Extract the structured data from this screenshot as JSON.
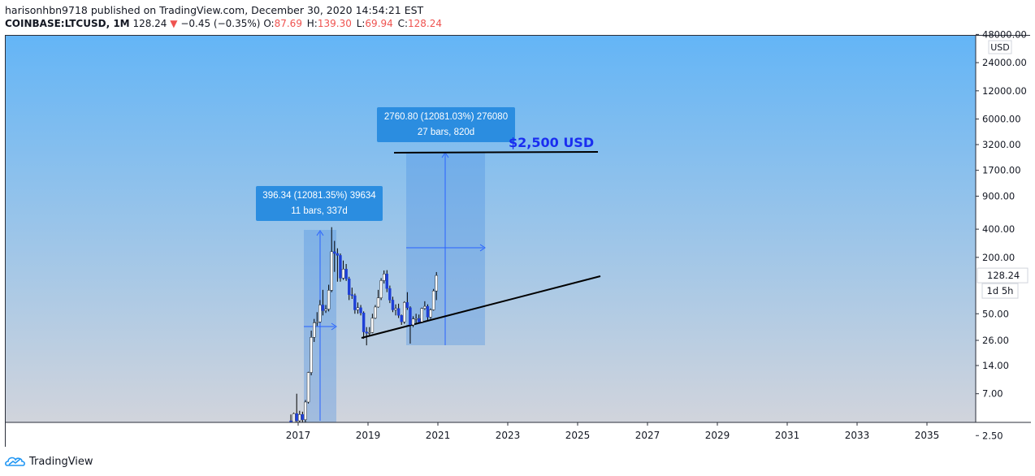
{
  "header": {
    "publisher_line": "harisonhbn9718 published on TradingView.com, December 30, 2020 14:54:21 EST",
    "symbol": "COINBASE:LTCUSD, 1M",
    "last_price": "128.24",
    "change_arrow": "▼",
    "change": "−0.45 (−0.35%)",
    "open_label": "O:",
    "open": "87.69",
    "high_label": "H:",
    "high": "139.30",
    "low_label": "L:",
    "low": "69.94",
    "close_label": "C:",
    "close": "128.24"
  },
  "footer": {
    "brand": "TradingView"
  },
  "colors": {
    "bg_top": "#64b5f6",
    "bg_bottom": "#d1d4dc",
    "bull": "#ffffff",
    "bear": "#1e3fd6",
    "measure_fill": "#4a90e2",
    "measure_label": "#2b8de0",
    "target_text": "#1a2ef0"
  },
  "chart_data": {
    "type": "candlestick",
    "scale": "log",
    "currency_label": "USD",
    "y_ticks": [
      "48000.00",
      "24000.00",
      "12000.00",
      "6000.00",
      "3200.00",
      "1700.00",
      "900.00",
      "400.00",
      "200.00",
      "50.00",
      "26.00",
      "14.00",
      "7.00",
      "2.50"
    ],
    "x_ticks": [
      "2017",
      "2019",
      "2021",
      "2023",
      "2025",
      "2027",
      "2029",
      "2031",
      "2033",
      "2035"
    ],
    "last_price_label": "128.24",
    "countdown_label": "1d 5h",
    "target_annotation": "$2,500 USD",
    "measure_1": {
      "line1": "396.34 (12081.35%) 39634",
      "line2": "11 bars, 337d"
    },
    "measure_2": {
      "line1": "2760.80 (12081.03%) 276080",
      "line2": "27 bars, 820d"
    },
    "candles": [
      {
        "t": "2016-10",
        "o": 3.6,
        "h": 4.2,
        "l": 3.0,
        "c": 3.2
      },
      {
        "t": "2016-11",
        "o": 3.2,
        "h": 4.4,
        "l": 3.0,
        "c": 4.3
      },
      {
        "t": "2016-12",
        "o": 4.3,
        "h": 7.0,
        "l": 3.5,
        "c": 3.6
      },
      {
        "t": "2017-01",
        "o": 3.6,
        "h": 4.6,
        "l": 3.2,
        "c": 4.2
      },
      {
        "t": "2017-02",
        "o": 4.2,
        "h": 4.5,
        "l": 3.3,
        "c": 3.7
      },
      {
        "t": "2017-03",
        "o": 3.7,
        "h": 6.0,
        "l": 3.4,
        "c": 5.7
      },
      {
        "t": "2017-04",
        "o": 5.7,
        "h": 12.0,
        "l": 5.5,
        "c": 11.8
      },
      {
        "t": "2017-05",
        "o": 11.8,
        "h": 33.0,
        "l": 11.0,
        "c": 28.0
      },
      {
        "t": "2017-06",
        "o": 28.0,
        "h": 44.0,
        "l": 25.0,
        "c": 40.0
      },
      {
        "t": "2017-07",
        "o": 40.0,
        "h": 52.0,
        "l": 37.0,
        "c": 41.0
      },
      {
        "t": "2017-08",
        "o": 41.0,
        "h": 70.0,
        "l": 40.0,
        "c": 62.0
      },
      {
        "t": "2017-09",
        "o": 62.0,
        "h": 90.0,
        "l": 48.0,
        "c": 54.0
      },
      {
        "t": "2017-10",
        "o": 54.0,
        "h": 62.0,
        "l": 51.0,
        "c": 56.0
      },
      {
        "t": "2017-11",
        "o": 56.0,
        "h": 102.0,
        "l": 53.0,
        "c": 89.0
      },
      {
        "t": "2017-12",
        "o": 89.0,
        "h": 420.0,
        "l": 85.0,
        "c": 230.0
      },
      {
        "t": "2018-01",
        "o": 230.0,
        "h": 300.0,
        "l": 140.0,
        "c": 220.0
      },
      {
        "t": "2018-02",
        "o": 220.0,
        "h": 250.0,
        "l": 110.0,
        "c": 210.0
      },
      {
        "t": "2018-03",
        "o": 210.0,
        "h": 220.0,
        "l": 110.0,
        "c": 120.0
      },
      {
        "t": "2018-04",
        "o": 120.0,
        "h": 185.0,
        "l": 115.0,
        "c": 150.0
      },
      {
        "t": "2018-05",
        "o": 150.0,
        "h": 170.0,
        "l": 112.0,
        "c": 118.0
      },
      {
        "t": "2018-06",
        "o": 118.0,
        "h": 124.0,
        "l": 70.0,
        "c": 80.0
      },
      {
        "t": "2018-07",
        "o": 80.0,
        "h": 95.0,
        "l": 72.0,
        "c": 78.0
      },
      {
        "t": "2018-08",
        "o": 78.0,
        "h": 82.0,
        "l": 50.0,
        "c": 55.0
      },
      {
        "t": "2018-09",
        "o": 55.0,
        "h": 66.0,
        "l": 50.0,
        "c": 58.0
      },
      {
        "t": "2018-10",
        "o": 58.0,
        "h": 62.0,
        "l": 48.0,
        "c": 51.0
      },
      {
        "t": "2018-11",
        "o": 51.0,
        "h": 53.0,
        "l": 27.0,
        "c": 32.0
      },
      {
        "t": "2018-12",
        "o": 32.0,
        "h": 36.0,
        "l": 23.0,
        "c": 31.0
      },
      {
        "t": "2019-01",
        "o": 31.0,
        "h": 36.0,
        "l": 29.0,
        "c": 31.5
      },
      {
        "t": "2019-02",
        "o": 31.5,
        "h": 50.0,
        "l": 31.0,
        "c": 45.0
      },
      {
        "t": "2019-03",
        "o": 45.0,
        "h": 62.0,
        "l": 44.0,
        "c": 59.0
      },
      {
        "t": "2019-04",
        "o": 59.0,
        "h": 90.0,
        "l": 58.0,
        "c": 74.0
      },
      {
        "t": "2019-05",
        "o": 74.0,
        "h": 120.0,
        "l": 70.0,
        "c": 113.0
      },
      {
        "t": "2019-06",
        "o": 113.0,
        "h": 145.0,
        "l": 105.0,
        "c": 133.0
      },
      {
        "t": "2019-07",
        "o": 133.0,
        "h": 146.0,
        "l": 85.0,
        "c": 93.0
      },
      {
        "t": "2019-08",
        "o": 93.0,
        "h": 100.0,
        "l": 65.0,
        "c": 70.0
      },
      {
        "t": "2019-09",
        "o": 70.0,
        "h": 76.0,
        "l": 52.0,
        "c": 55.0
      },
      {
        "t": "2019-10",
        "o": 55.0,
        "h": 63.0,
        "l": 48.0,
        "c": 57.0
      },
      {
        "t": "2019-11",
        "o": 57.0,
        "h": 64.0,
        "l": 45.0,
        "c": 48.0
      },
      {
        "t": "2019-12",
        "o": 48.0,
        "h": 49.0,
        "l": 38.0,
        "c": 41.0
      },
      {
        "t": "2020-01",
        "o": 41.0,
        "h": 68.0,
        "l": 39.0,
        "c": 66.0
      },
      {
        "t": "2020-02",
        "o": 66.0,
        "h": 85.0,
        "l": 55.0,
        "c": 58.0
      },
      {
        "t": "2020-03",
        "o": 58.0,
        "h": 60.0,
        "l": 24.0,
        "c": 38.0
      },
      {
        "t": "2020-04",
        "o": 38.0,
        "h": 47.0,
        "l": 36.0,
        "c": 44.0
      },
      {
        "t": "2020-05",
        "o": 44.0,
        "h": 50.0,
        "l": 40.0,
        "c": 44.5
      },
      {
        "t": "2020-06",
        "o": 44.5,
        "h": 49.0,
        "l": 40.0,
        "c": 41.0
      },
      {
        "t": "2020-07",
        "o": 41.0,
        "h": 58.0,
        "l": 40.0,
        "c": 57.0
      },
      {
        "t": "2020-08",
        "o": 57.0,
        "h": 68.0,
        "l": 55.0,
        "c": 60.0
      },
      {
        "t": "2020-09",
        "o": 60.0,
        "h": 63.0,
        "l": 42.0,
        "c": 46.0
      },
      {
        "t": "2020-10",
        "o": 46.0,
        "h": 57.0,
        "l": 44.0,
        "c": 55.0
      },
      {
        "t": "2020-11",
        "o": 55.0,
        "h": 92.0,
        "l": 54.0,
        "c": 87.69
      },
      {
        "t": "2020-12",
        "o": 87.69,
        "h": 139.3,
        "l": 69.94,
        "c": 128.24
      }
    ]
  }
}
